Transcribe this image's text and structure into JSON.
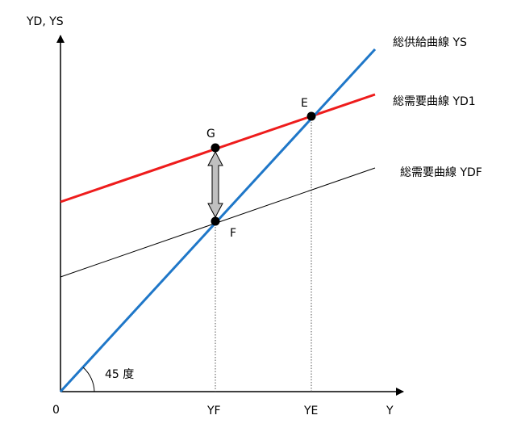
{
  "axes": {
    "y_label": "YD, YS",
    "x_label": "Y",
    "origin_label": "0"
  },
  "angle_label": "45 度",
  "lines": {
    "ys": {
      "label": "総供給曲線 YS",
      "color": "#1f77c8"
    },
    "yd1": {
      "label": "総需要曲線 YD1",
      "color": "#ee1c1c"
    },
    "ydf": {
      "label": "総需要曲線 YDF",
      "color": "#000000"
    }
  },
  "points": {
    "e": "E",
    "f": "F",
    "g": "G"
  },
  "ticks": {
    "yf": "YF",
    "ye": "YE"
  },
  "gap_arrow_color": "#c0c0c0"
}
